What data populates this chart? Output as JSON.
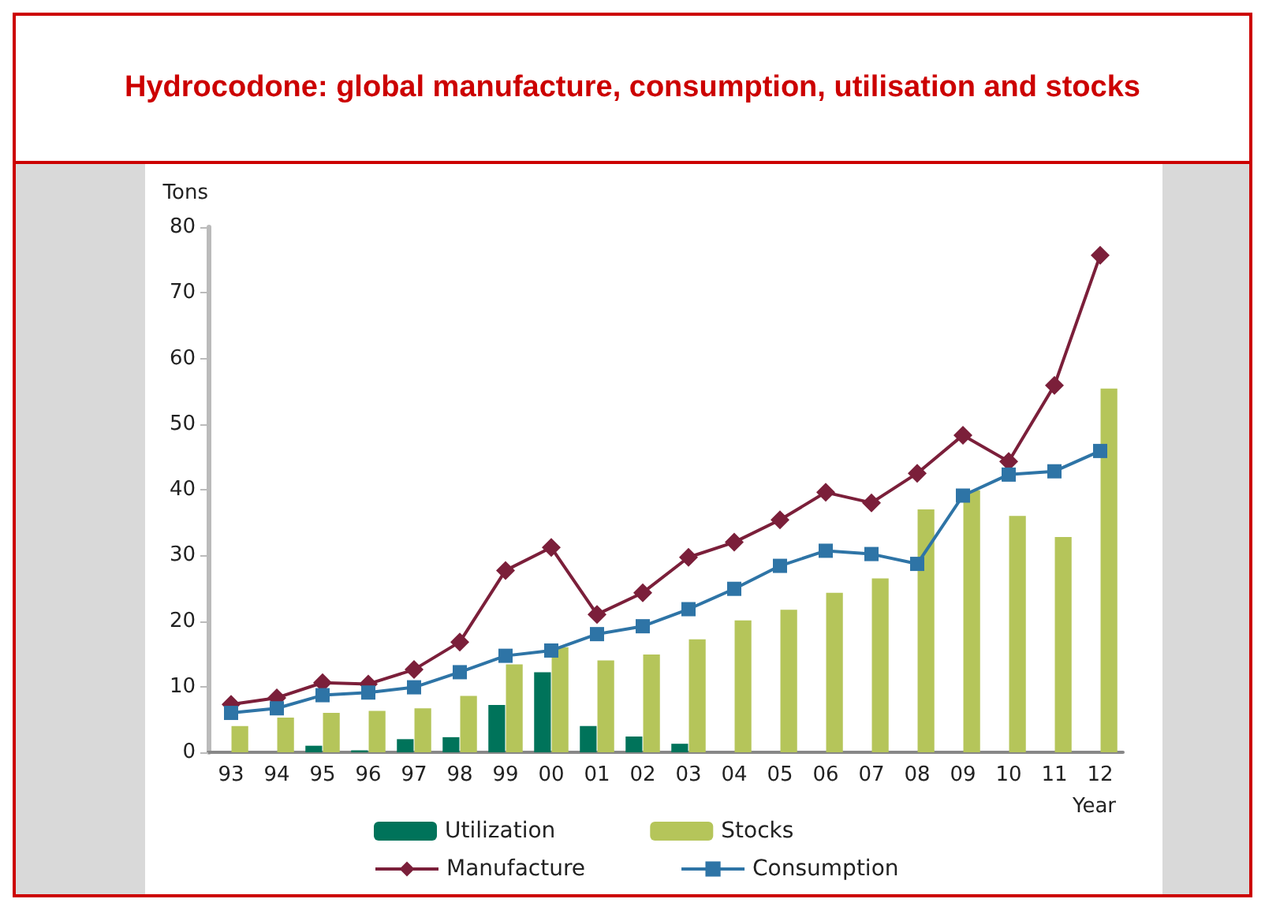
{
  "chart_data": {
    "type": "bar",
    "title": "Hydrocodone: global manufacture, consumption, utilisation and stocks",
    "xlabel": "Year",
    "ylabel": "Tons",
    "categories": [
      "93",
      "94",
      "95",
      "96",
      "97",
      "98",
      "99",
      "00",
      "01",
      "02",
      "03",
      "04",
      "05",
      "06",
      "07",
      "08",
      "09",
      "10",
      "11",
      "12"
    ],
    "series": [
      {
        "name": "Utilization",
        "color": "#00735a",
        "values": [
          null,
          null,
          1,
          0.3,
          2,
          2.3,
          7.2,
          12.2,
          4,
          2.4,
          1.3,
          null,
          null,
          null,
          null,
          null,
          null,
          null,
          null,
          null
        ]
      },
      {
        "name": "Stocks",
        "color": "#b5c55a",
        "values": [
          4,
          5.3,
          6,
          6.3,
          6.7,
          8.6,
          13.4,
          16,
          14,
          14.9,
          17.2,
          20.1,
          21.7,
          24.3,
          26.5,
          37,
          39.9,
          36,
          32.8,
          55.4
        ]
      },
      {
        "name": "Manufacture",
        "type": "line",
        "marker": "diamond",
        "color": "#7b1f3a",
        "values": [
          7.3,
          8.3,
          10.6,
          10.4,
          12.6,
          16.8,
          27.7,
          31.2,
          21,
          24.3,
          29.7,
          32,
          35.4,
          39.6,
          38,
          42.5,
          48.3,
          44.3,
          55.9,
          75.7
        ]
      },
      {
        "name": "Consumption",
        "type": "line",
        "marker": "square",
        "color": "#2e74a6",
        "values": [
          6,
          6.7,
          8.7,
          9.1,
          9.9,
          12.2,
          14.7,
          15.5,
          18,
          19.2,
          21.8,
          24.9,
          28.4,
          30.7,
          30.2,
          28.7,
          39.1,
          42.3,
          42.8,
          45.9
        ]
      }
    ],
    "ylim": [
      0,
      80
    ],
    "yticks": [
      0,
      10,
      20,
      30,
      40,
      50,
      60,
      70,
      80
    ],
    "grid": false,
    "legend": "bottom"
  }
}
